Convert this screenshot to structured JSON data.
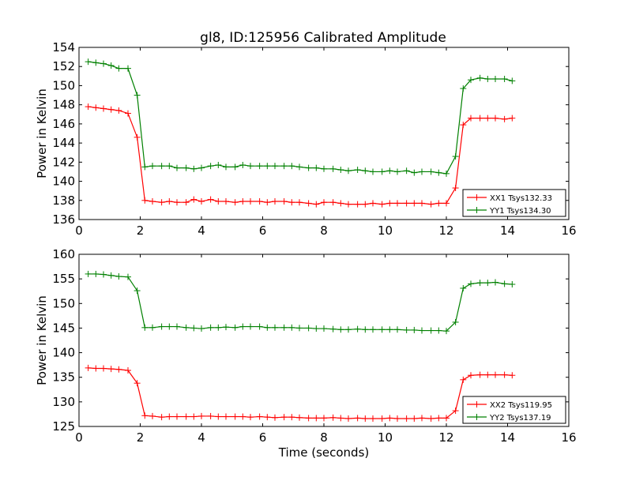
{
  "title": "gl8, ID:125956 Calibrated Amplitude",
  "chart_data": [
    {
      "type": "line",
      "ylabel": "Power in Kelvin",
      "xlabel": "",
      "xlim": [
        0,
        16
      ],
      "ylim": [
        136,
        154
      ],
      "xticks": [
        0,
        2,
        4,
        6,
        8,
        10,
        12,
        14,
        16
      ],
      "yticks": [
        136,
        138,
        140,
        142,
        144,
        146,
        148,
        150,
        152,
        154
      ],
      "legend_position": "lower-right",
      "x": [
        0.3,
        0.55,
        0.8,
        1.05,
        1.3,
        1.6,
        1.9,
        2.15,
        2.4,
        2.7,
        2.95,
        3.2,
        3.5,
        3.75,
        4.0,
        4.3,
        4.55,
        4.8,
        5.1,
        5.35,
        5.6,
        5.9,
        6.15,
        6.4,
        6.7,
        6.95,
        7.2,
        7.5,
        7.75,
        8.0,
        8.3,
        8.55,
        8.8,
        9.1,
        9.35,
        9.6,
        9.9,
        10.15,
        10.4,
        10.7,
        10.95,
        11.2,
        11.5,
        11.75,
        12.0,
        12.3,
        12.55,
        12.8,
        13.1,
        13.35,
        13.6,
        13.9,
        14.15
      ],
      "series": [
        {
          "name": "XX1 Tsys132.33",
          "color": "#ff0000",
          "values": [
            147.8,
            147.7,
            147.6,
            147.5,
            147.4,
            147.1,
            144.6,
            138.0,
            137.9,
            137.8,
            137.9,
            137.8,
            137.8,
            138.1,
            137.9,
            138.1,
            137.9,
            137.9,
            137.8,
            137.9,
            137.9,
            137.9,
            137.8,
            137.9,
            137.9,
            137.8,
            137.8,
            137.7,
            137.6,
            137.8,
            137.8,
            137.7,
            137.6,
            137.6,
            137.6,
            137.7,
            137.6,
            137.7,
            137.7,
            137.7,
            137.7,
            137.7,
            137.6,
            137.7,
            137.7,
            139.3,
            145.9,
            146.6,
            146.6,
            146.6,
            146.6,
            146.5,
            146.6
          ]
        },
        {
          "name": "YY1 Tsys134.30",
          "color": "#008000",
          "values": [
            152.5,
            152.4,
            152.3,
            152.1,
            151.8,
            151.8,
            149.0,
            141.5,
            141.6,
            141.6,
            141.6,
            141.4,
            141.4,
            141.3,
            141.4,
            141.6,
            141.7,
            141.5,
            141.5,
            141.7,
            141.6,
            141.6,
            141.6,
            141.6,
            141.6,
            141.6,
            141.5,
            141.4,
            141.4,
            141.3,
            141.3,
            141.2,
            141.1,
            141.2,
            141.1,
            141.0,
            141.0,
            141.1,
            141.0,
            141.1,
            140.9,
            141.0,
            141.0,
            140.9,
            140.8,
            142.6,
            149.7,
            150.6,
            150.8,
            150.7,
            150.7,
            150.7,
            150.5
          ]
        }
      ]
    },
    {
      "type": "line",
      "ylabel": "Power in Kelvin",
      "xlabel": "Time (seconds)",
      "xlim": [
        0,
        16
      ],
      "ylim": [
        125,
        160
      ],
      "xticks": [
        0,
        2,
        4,
        6,
        8,
        10,
        12,
        14,
        16
      ],
      "yticks": [
        125,
        130,
        135,
        140,
        145,
        150,
        155,
        160
      ],
      "legend_position": "lower-right",
      "x": [
        0.3,
        0.55,
        0.8,
        1.05,
        1.3,
        1.6,
        1.9,
        2.15,
        2.4,
        2.7,
        2.95,
        3.2,
        3.5,
        3.75,
        4.0,
        4.3,
        4.55,
        4.8,
        5.1,
        5.35,
        5.6,
        5.9,
        6.15,
        6.4,
        6.7,
        6.95,
        7.2,
        7.5,
        7.75,
        8.0,
        8.3,
        8.55,
        8.8,
        9.1,
        9.35,
        9.6,
        9.9,
        10.15,
        10.4,
        10.7,
        10.95,
        11.2,
        11.5,
        11.75,
        12.0,
        12.3,
        12.55,
        12.8,
        13.1,
        13.35,
        13.6,
        13.9,
        14.15
      ],
      "series": [
        {
          "name": "XX2 Tsys119.95",
          "color": "#ff0000",
          "values": [
            136.9,
            136.8,
            136.8,
            136.7,
            136.6,
            136.4,
            133.8,
            127.2,
            127.1,
            126.9,
            127.0,
            127.0,
            127.0,
            127.0,
            127.1,
            127.1,
            127.0,
            127.0,
            127.0,
            127.0,
            126.9,
            127.0,
            126.9,
            126.8,
            126.9,
            126.9,
            126.8,
            126.7,
            126.7,
            126.7,
            126.8,
            126.7,
            126.6,
            126.7,
            126.6,
            126.6,
            126.6,
            126.7,
            126.6,
            126.6,
            126.6,
            126.7,
            126.6,
            126.7,
            126.7,
            128.2,
            134.5,
            135.4,
            135.5,
            135.5,
            135.5,
            135.5,
            135.4
          ]
        },
        {
          "name": "YY2 Tsys137.19",
          "color": "#008000",
          "values": [
            156.0,
            156.0,
            155.9,
            155.7,
            155.5,
            155.4,
            152.6,
            145.1,
            145.1,
            145.3,
            145.3,
            145.3,
            145.1,
            145.0,
            144.9,
            145.1,
            145.1,
            145.2,
            145.1,
            145.3,
            145.3,
            145.3,
            145.1,
            145.1,
            145.1,
            145.1,
            145.0,
            145.0,
            144.9,
            144.9,
            144.8,
            144.7,
            144.7,
            144.8,
            144.7,
            144.7,
            144.7,
            144.7,
            144.7,
            144.6,
            144.6,
            144.5,
            144.5,
            144.5,
            144.4,
            146.2,
            153.1,
            154.0,
            154.2,
            154.2,
            154.3,
            154.0,
            153.9
          ]
        }
      ]
    }
  ]
}
